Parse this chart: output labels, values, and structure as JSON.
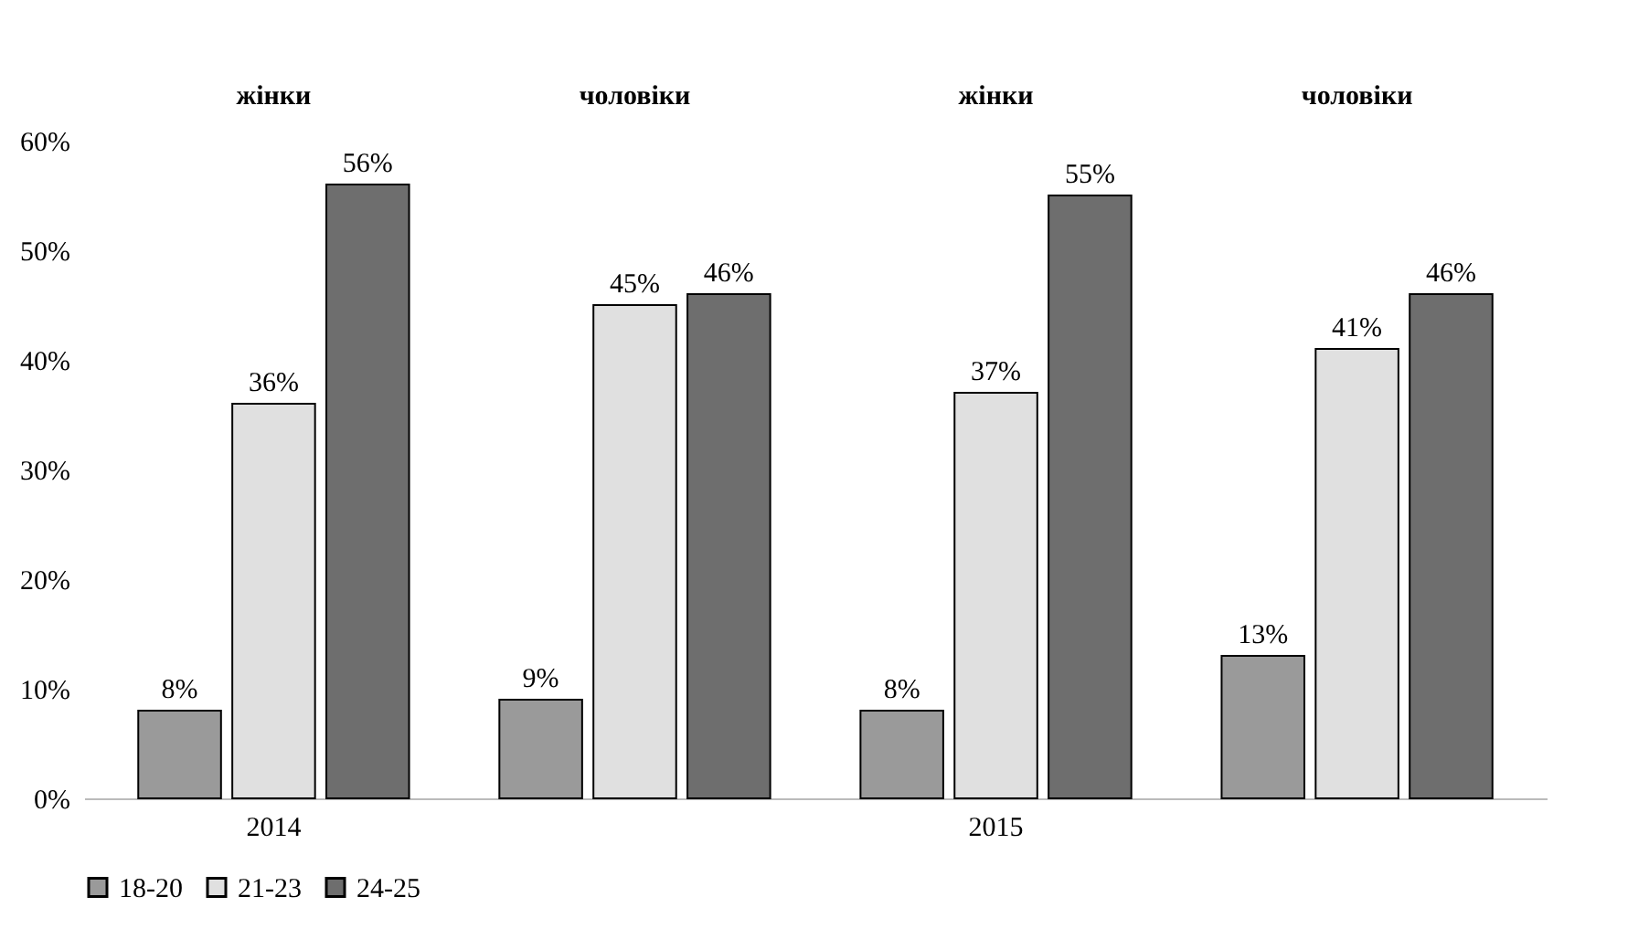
{
  "chart_data": {
    "type": "bar",
    "categories": [
      "2014",
      null,
      "2015",
      null
    ],
    "series": [
      {
        "name": "18-20",
        "color": "#9a9a9a",
        "values": [
          8,
          9,
          8,
          13
        ],
        "value_labels": [
          "8%",
          "9%",
          "8%",
          "13%"
        ]
      },
      {
        "name": "21-23",
        "color": "#e0e0e0",
        "values": [
          36,
          45,
          37,
          41
        ],
        "value_labels": [
          "36%",
          "45%",
          "37%",
          "41%"
        ]
      },
      {
        "name": "24-25",
        "color": "#6e6e6e",
        "values": [
          56,
          46,
          55,
          46
        ],
        "value_labels": [
          "56%",
          "46%",
          "55%",
          "46%"
        ]
      }
    ],
    "annotations": [
      "жінки",
      "чоловіки",
      "жінки",
      "чоловіки"
    ],
    "ylim": [
      0,
      60
    ],
    "yticks": [
      {
        "value": 0,
        "label": "0%"
      },
      {
        "value": 10,
        "label": "10%"
      },
      {
        "value": 20,
        "label": "20%"
      },
      {
        "value": 30,
        "label": "30%"
      },
      {
        "value": 40,
        "label": "40%"
      },
      {
        "value": 50,
        "label": "50%"
      },
      {
        "value": 60,
        "label": "60%"
      }
    ],
    "grid": false,
    "legend": "bottom"
  }
}
